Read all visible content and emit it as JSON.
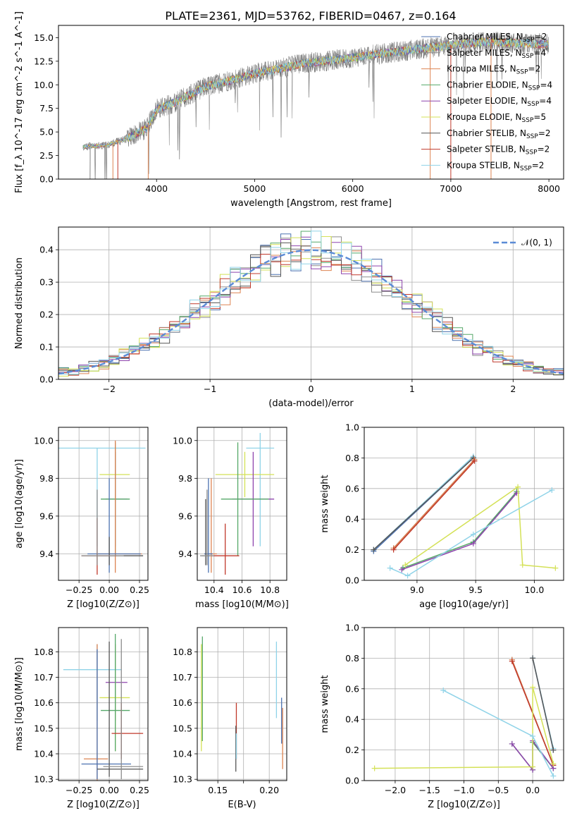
{
  "figure_title": "PLATE=2361, MJD=53762, FIBERID=0467, z=0.164",
  "models": [
    {
      "name": "Chabrier MILES",
      "nssp": 2,
      "color": "#4c72b0"
    },
    {
      "name": "Salpeter MILES",
      "nssp": 4,
      "color": "#8c8c8c"
    },
    {
      "name": "Kroupa MILES",
      "nssp": 2,
      "color": "#dd8452"
    },
    {
      "name": "Chabrier ELODIE",
      "nssp": 4,
      "color": "#55a868"
    },
    {
      "name": "Salpeter ELODIE",
      "nssp": 4,
      "color": "#8e44ad"
    },
    {
      "name": "Kroupa ELODIE",
      "nssp": 5,
      "color": "#d4e157"
    },
    {
      "name": "Chabrier STELIB",
      "nssp": 2,
      "color": "#555555"
    },
    {
      "name": "Salpeter STELIB",
      "nssp": 2,
      "color": "#c0392b"
    },
    {
      "name": "Kroupa STELIB",
      "nssp": 2,
      "color": "#8fd3e8"
    }
  ],
  "chart_data": [
    {
      "id": "spectrum",
      "type": "line",
      "xlabel": "wavelength [Angstrom, rest frame]",
      "ylabel": "Flux [f_λ 10^-17 erg cm^-2 s^-1 A^-1]",
      "xlim": [
        3000,
        8150
      ],
      "ylim": [
        0,
        16.3
      ],
      "xticks": [
        4000,
        5000,
        6000,
        7000,
        8000
      ],
      "yticks": [
        0.0,
        2.5,
        5.0,
        7.5,
        10.0,
        12.5,
        15.0
      ],
      "ytick_labels": [
        "0.0",
        "2.5",
        "5.0",
        "7.5",
        "10.0",
        "12.5",
        "15.0"
      ],
      "continuum": {
        "x": [
          3250,
          3500,
          3700,
          3900,
          4000,
          4200,
          4500,
          4800,
          5000,
          5300,
          5500,
          5800,
          6000,
          6300,
          6600,
          7000,
          7400,
          7700,
          8000
        ],
        "y": [
          3.4,
          3.6,
          4.3,
          5.4,
          7.4,
          8.2,
          9.8,
          10.6,
          11.2,
          11.8,
          12.3,
          12.6,
          12.9,
          13.3,
          13.7,
          14.2,
          14.6,
          14.4,
          14.3
        ]
      },
      "grid": false,
      "legend_position": "upper right"
    },
    {
      "id": "residuals",
      "type": "step",
      "xlabel": "(data-model)/error",
      "ylabel": "Normed distribution",
      "xlim": [
        -2.5,
        2.5
      ],
      "ylim": [
        0,
        0.47
      ],
      "xticks": [
        -2,
        -1,
        0,
        1,
        2
      ],
      "xtick_labels": [
        "−2",
        "−1",
        "0",
        "1",
        "2"
      ],
      "yticks": [
        0.0,
        0.1,
        0.2,
        0.3,
        0.4
      ],
      "ytick_labels": [
        "0.0",
        "0.1",
        "0.2",
        "0.3",
        "0.4"
      ],
      "gaussian_label": "𝒩(0, 1)",
      "bin_width": 0.1,
      "grid": true,
      "legend_position": "upper right"
    },
    {
      "id": "age-vs-Z",
      "type": "errorbar",
      "xlabel": "Z [log10(Z/Z⊙)]",
      "ylabel": "age [log10(age/yr)]",
      "xlim": [
        -0.42,
        0.32
      ],
      "ylim": [
        9.26,
        10.07
      ],
      "xticks": [
        -0.25,
        0.0,
        0.25
      ],
      "xtick_labels": [
        "−0.25",
        "0.00",
        "0.25"
      ],
      "yticks": [
        9.4,
        9.6,
        9.8,
        10.0
      ],
      "ytick_labels": [
        "9.4",
        "9.6",
        "9.8",
        "10.0"
      ],
      "points": [
        {
          "model": 8,
          "x": -0.1,
          "xerr": [
            0.4,
            0.4
          ],
          "y": 9.96,
          "yerr": [
            0.52,
            0.0
          ]
        },
        {
          "model": 5,
          "x": 0.05,
          "xerr": [
            0.13,
            0.12
          ],
          "y": 9.82,
          "yerr": [
            0.12,
            0.12
          ]
        },
        {
          "model": 4,
          "x": 0.05,
          "xerr": [
            0.08,
            0.1
          ],
          "y": 9.69,
          "yerr": [
            0.25,
            0.25
          ]
        },
        {
          "model": 3,
          "x": 0.05,
          "xerr": [
            0.12,
            0.12
          ],
          "y": 9.69,
          "yerr": [
            0.3,
            0.3
          ]
        },
        {
          "model": 2,
          "x": 0.05,
          "xerr": [
            0.16,
            0.22
          ],
          "y": 9.4,
          "yerr": [
            0.1,
            0.6
          ]
        },
        {
          "model": 0,
          "x": 0.0,
          "xerr": [
            0.18,
            0.26
          ],
          "y": 9.4,
          "yerr": [
            0.1,
            0.4
          ]
        },
        {
          "model": 6,
          "x": 0.0,
          "xerr": [
            0.18,
            0.28
          ],
          "y": 9.39,
          "yerr": [
            0.05,
            0.1
          ]
        },
        {
          "model": 7,
          "x": -0.1,
          "xerr": [
            0.13,
            0.17
          ],
          "y": 9.39,
          "yerr": [
            0.1,
            0.2
          ]
        },
        {
          "model": 1,
          "x": -0.1,
          "xerr": [
            0.13,
            0.22
          ],
          "y": 9.39,
          "yerr": [
            0.05,
            0.35
          ]
        }
      ],
      "grid": true
    },
    {
      "id": "age-vs-mass",
      "type": "errorbar",
      "xlabel": "mass [log10(M/M⊙)]",
      "ylabel": "",
      "xlim": [
        10.28,
        10.92
      ],
      "ylim": [
        9.26,
        10.07
      ],
      "xticks": [
        10.4,
        10.6,
        10.8
      ],
      "xtick_labels": [
        "10.4",
        "10.6",
        "10.8"
      ],
      "yticks": [
        9.4,
        9.6,
        9.8,
        10.0
      ],
      "ytick_labels": [
        "9.4",
        "9.6",
        "9.8",
        "10.0"
      ],
      "points": [
        {
          "model": 8,
          "x": 10.73,
          "xerr": [
            0.1,
            0.1
          ],
          "y": 9.96,
          "yerr": [
            0.52,
            0.08
          ]
        },
        {
          "model": 5,
          "x": 10.62,
          "xerr": [
            0.21,
            0.21
          ],
          "y": 9.82,
          "yerr": [
            0.12,
            0.12
          ]
        },
        {
          "model": 4,
          "x": 10.68,
          "xerr": [
            0.15,
            0.15
          ],
          "y": 9.69,
          "yerr": [
            0.25,
            0.25
          ]
        },
        {
          "model": 3,
          "x": 10.57,
          "xerr": [
            0.12,
            0.22
          ],
          "y": 9.69,
          "yerr": [
            0.3,
            0.3
          ]
        },
        {
          "model": 2,
          "x": 10.38,
          "xerr": [
            0.04,
            0.04
          ],
          "y": 9.4,
          "yerr": [
            0.1,
            0.4
          ]
        },
        {
          "model": 0,
          "x": 10.36,
          "xerr": [
            0.03,
            0.03
          ],
          "y": 9.4,
          "yerr": [
            0.1,
            0.4
          ]
        },
        {
          "model": 6,
          "x": 10.34,
          "xerr": [
            0.03,
            0.03
          ],
          "y": 9.39,
          "yerr": [
            0.05,
            0.3
          ]
        },
        {
          "model": 7,
          "x": 10.48,
          "xerr": [
            0.1,
            0.1
          ],
          "y": 9.39,
          "yerr": [
            0.1,
            0.17
          ]
        },
        {
          "model": 1,
          "x": 10.35,
          "xerr": [
            0.05,
            0.05
          ],
          "y": 9.39,
          "yerr": [
            0.05,
            0.35
          ]
        }
      ],
      "grid": true
    },
    {
      "id": "weight-vs-age",
      "type": "line",
      "xlabel": "age [log10(age/yr)]",
      "ylabel": "mass weight",
      "xlim": [
        8.55,
        10.25
      ],
      "ylim": [
        0,
        1.0
      ],
      "xticks": [
        9.0,
        9.5,
        10.0
      ],
      "xtick_labels": [
        "9.0",
        "9.5",
        "10.0"
      ],
      "yticks": [
        0.0,
        0.2,
        0.4,
        0.6,
        0.8,
        1.0
      ],
      "ytick_labels": [
        "0.0",
        "0.2",
        "0.4",
        "0.6",
        "0.8",
        "1.0"
      ],
      "series": [
        {
          "model": 0,
          "x": [
            8.63,
            9.48
          ],
          "y": [
            0.19,
            0.8
          ]
        },
        {
          "model": 8,
          "x": [
            8.63,
            9.48
          ],
          "y": [
            0.2,
            0.81
          ]
        },
        {
          "model": 6,
          "x": [
            8.63,
            9.48
          ],
          "y": [
            0.2,
            0.8
          ]
        },
        {
          "model": 1,
          "x": [
            8.8,
            9.49
          ],
          "y": [
            0.21,
            0.79
          ]
        },
        {
          "model": 2,
          "x": [
            8.8,
            9.49
          ],
          "y": [
            0.21,
            0.79
          ]
        },
        {
          "model": 7,
          "x": [
            8.8,
            9.49
          ],
          "y": [
            0.2,
            0.78
          ]
        },
        {
          "model": 3,
          "x": [
            8.88,
            9.48,
            9.85
          ],
          "y": [
            0.08,
            0.25,
            0.58
          ]
        },
        {
          "model": 4,
          "x": [
            8.87,
            9.48,
            9.85
          ],
          "y": [
            0.07,
            0.24,
            0.57
          ]
        },
        {
          "model": 5,
          "x": [
            8.9,
            9.86,
            9.9,
            10.18
          ],
          "y": [
            0.1,
            0.61,
            0.1,
            0.08
          ]
        },
        {
          "model": 8,
          "x": [
            8.77,
            8.92,
            9.48,
            10.15
          ],
          "y": [
            0.08,
            0.03,
            0.3,
            0.59
          ]
        }
      ],
      "grid": true
    },
    {
      "id": "mass-vs-Z",
      "type": "errorbar",
      "xlabel": "Z [log10(Z/Z⊙)]",
      "ylabel": "mass [log10(M/M⊙)]",
      "xlim": [
        -0.42,
        0.32
      ],
      "ylim": [
        10.295,
        10.895
      ],
      "xticks": [
        -0.25,
        0.0,
        0.25
      ],
      "xtick_labels": [
        "−0.25",
        "0.00",
        "0.25"
      ],
      "yticks": [
        10.3,
        10.4,
        10.5,
        10.6,
        10.7,
        10.8
      ],
      "ytick_labels": [
        "10.3",
        "10.4",
        "10.5",
        "10.6",
        "10.7",
        "10.8"
      ],
      "points": [
        {
          "model": 8,
          "x": -0.1,
          "xerr": [
            0.28,
            0.2
          ],
          "y": 10.73,
          "yerr": [
            0.2,
            0.1
          ]
        },
        {
          "model": 4,
          "x": 0.05,
          "xerr": [
            0.08,
            0.1
          ],
          "y": 10.68,
          "yerr": [
            0.15,
            0.15
          ]
        },
        {
          "model": 5,
          "x": 0.05,
          "xerr": [
            0.13,
            0.12
          ],
          "y": 10.62,
          "yerr": [
            0.21,
            0.21
          ]
        },
        {
          "model": 3,
          "x": 0.05,
          "xerr": [
            0.12,
            0.12
          ],
          "y": 10.57,
          "yerr": [
            0.16,
            0.3
          ]
        },
        {
          "model": 7,
          "x": 0.1,
          "xerr": [
            0.08,
            0.18
          ],
          "y": 10.48,
          "yerr": [
            0.1,
            0.12
          ]
        },
        {
          "model": 2,
          "x": -0.1,
          "xerr": [
            0.11,
            0.09
          ],
          "y": 10.38,
          "yerr": [
            0.09,
            0.45
          ]
        },
        {
          "model": 0,
          "x": -0.1,
          "xerr": [
            0.13,
            0.28
          ],
          "y": 10.36,
          "yerr": [
            0.06,
            0.45
          ]
        },
        {
          "model": 6,
          "x": 0.0,
          "xerr": [
            0.1,
            0.28
          ],
          "y": 10.34,
          "yerr": [
            0.03,
            0.5
          ]
        },
        {
          "model": 1,
          "x": 0.1,
          "xerr": [
            0.15,
            0.18
          ],
          "y": 10.35,
          "yerr": [
            0.05,
            0.5
          ]
        }
      ],
      "grid": true
    },
    {
      "id": "mass-vs-EBV",
      "type": "errorbar",
      "xlabel": "E(B-V)",
      "ylabel": "",
      "xlim": [
        0.13,
        0.217
      ],
      "ylim": [
        10.295,
        10.895
      ],
      "xticks": [
        0.15,
        0.175,
        0.2
      ],
      "xtick_labels": [
        "0.15",
        "",
        "0.20"
      ],
      "yticks": [
        10.3,
        10.4,
        10.5,
        10.6,
        10.7,
        10.8
      ],
      "ytick_labels": [
        "10.3",
        "10.4",
        "10.5",
        "10.6",
        "10.7",
        "10.8"
      ],
      "vlines": [
        {
          "model": 3,
          "x": 0.135,
          "y": [
            10.45,
            10.86
          ]
        },
        {
          "model": 5,
          "x": 0.134,
          "y": [
            10.41,
            10.83
          ]
        },
        {
          "model": 7,
          "x": 0.168,
          "y": [
            10.38,
            10.6
          ]
        },
        {
          "model": 6,
          "x": 0.1675,
          "y": [
            10.33,
            10.51
          ]
        },
        {
          "model": 8,
          "x": 0.168,
          "y": [
            10.38,
            10.48
          ]
        },
        {
          "model": 8,
          "x": 0.207,
          "y": [
            10.54,
            10.84
          ]
        },
        {
          "model": 2,
          "x": 0.213,
          "y": [
            10.34,
            10.58
          ]
        },
        {
          "model": 0,
          "x": 0.212,
          "y": [
            10.44,
            10.62
          ]
        }
      ],
      "grid": true
    },
    {
      "id": "weight-vs-Z",
      "type": "line",
      "xlabel": "Z [log10(Z/Z⊙)]",
      "ylabel": "mass weight",
      "xlim": [
        -2.45,
        0.45
      ],
      "ylim": [
        0,
        1.0
      ],
      "xticks": [
        -2.0,
        -1.5,
        -1.0,
        -0.5,
        0.0
      ],
      "xtick_labels": [
        "−2.0",
        "−1.5",
        "−1.0",
        "−0.5",
        "0.0"
      ],
      "yticks": [
        0.0,
        0.2,
        0.4,
        0.6,
        0.8,
        1.0
      ],
      "ytick_labels": [
        "0.0",
        "0.2",
        "0.4",
        "0.6",
        "0.8",
        "1.0"
      ],
      "series": [
        {
          "model": 0,
          "x": [
            0.0,
            0.3
          ],
          "y": [
            0.8,
            0.2
          ]
        },
        {
          "model": 8,
          "x": [
            0.0,
            0.3
          ],
          "y": [
            0.8,
            0.21
          ]
        },
        {
          "model": 6,
          "x": [
            0.0,
            0.3
          ],
          "y": [
            0.8,
            0.2
          ]
        },
        {
          "model": 1,
          "x": [
            -0.3,
            0.3
          ],
          "y": [
            0.79,
            0.1
          ]
        },
        {
          "model": 2,
          "x": [
            -0.3,
            0.3
          ],
          "y": [
            0.79,
            0.1
          ]
        },
        {
          "model": 7,
          "x": [
            -0.3,
            0.3
          ],
          "y": [
            0.78,
            0.1
          ]
        },
        {
          "model": 3,
          "x": [
            -0.3,
            0.0,
            0.0,
            0.3
          ],
          "y": [
            0.24,
            0.07,
            0.25,
            0.08
          ]
        },
        {
          "model": 4,
          "x": [
            -0.3,
            0.0,
            0.0,
            0.3
          ],
          "y": [
            0.24,
            0.07,
            0.26,
            0.08
          ]
        },
        {
          "model": 5,
          "x": [
            -2.3,
            0.0,
            0.0,
            0.3
          ],
          "y": [
            0.08,
            0.09,
            0.61,
            0.11
          ]
        },
        {
          "model": 8,
          "x": [
            -1.3,
            0.0,
            0.3
          ],
          "y": [
            0.59,
            0.29,
            0.03
          ]
        }
      ],
      "grid": true
    }
  ]
}
